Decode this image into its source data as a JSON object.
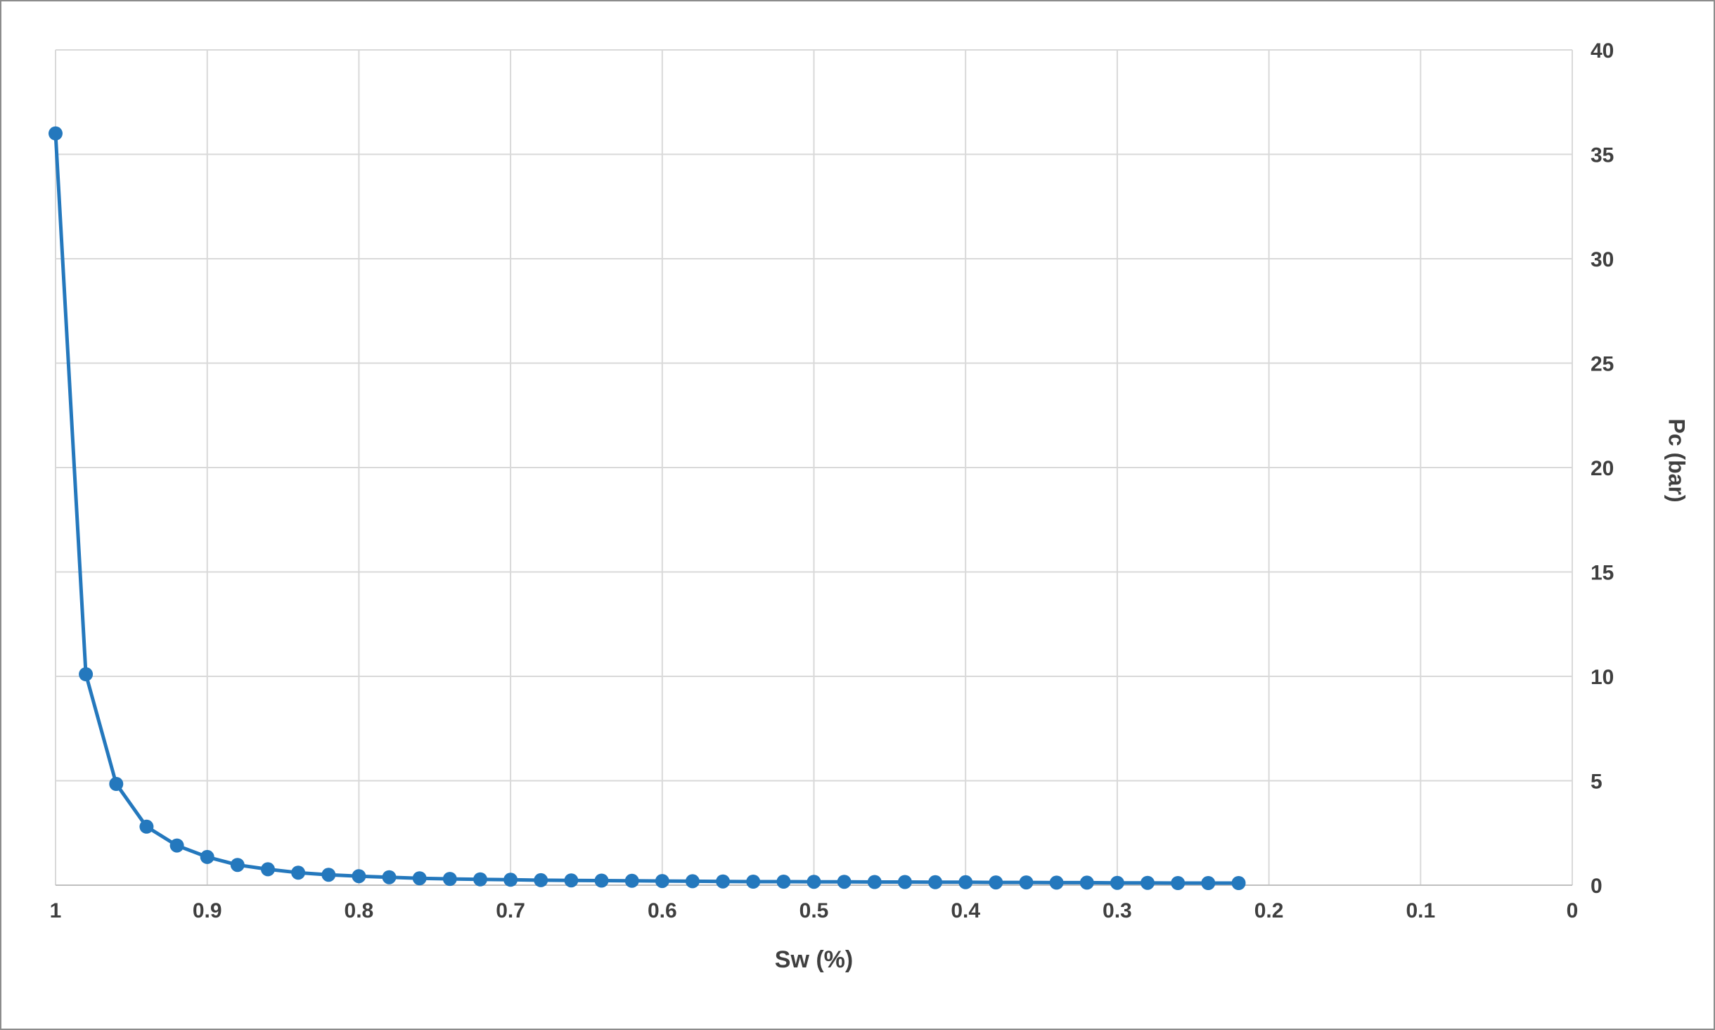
{
  "chart_data": {
    "type": "line",
    "title": "",
    "xlabel": "Sw (%)",
    "ylabel": "Pc (bar)",
    "xlim": [
      1,
      0
    ],
    "ylim": [
      0,
      40
    ],
    "x_axis_reversed": true,
    "grid": true,
    "legend": "none",
    "x_ticks": [
      {
        "value": 1,
        "label": "1"
      },
      {
        "value": 0.9,
        "label": "0.9"
      },
      {
        "value": 0.8,
        "label": "0.8"
      },
      {
        "value": 0.7,
        "label": "0.7"
      },
      {
        "value": 0.6,
        "label": "0.6"
      },
      {
        "value": 0.5,
        "label": "0.5"
      },
      {
        "value": 0.4,
        "label": "0.4"
      },
      {
        "value": 0.3,
        "label": "0.3"
      },
      {
        "value": 0.2,
        "label": "0.2"
      },
      {
        "value": 0.1,
        "label": "0.1"
      },
      {
        "value": 0,
        "label": "0"
      }
    ],
    "y_ticks": [
      {
        "value": 0,
        "label": "0"
      },
      {
        "value": 5,
        "label": "5"
      },
      {
        "value": 10,
        "label": "10"
      },
      {
        "value": 15,
        "label": "15"
      },
      {
        "value": 20,
        "label": "20"
      },
      {
        "value": 25,
        "label": "25"
      },
      {
        "value": 30,
        "label": "30"
      },
      {
        "value": 35,
        "label": "35"
      },
      {
        "value": 40,
        "label": "40"
      }
    ],
    "series": [
      {
        "name": "Pc (bar)",
        "color": "#2478BD",
        "marker": "circle",
        "x": [
          1.0,
          0.98,
          0.96,
          0.94,
          0.92,
          0.9,
          0.88,
          0.86,
          0.84,
          0.82,
          0.8,
          0.78,
          0.76,
          0.74,
          0.72,
          0.7,
          0.68,
          0.66,
          0.64,
          0.62,
          0.6,
          0.58,
          0.56,
          0.54,
          0.52,
          0.5,
          0.48,
          0.46,
          0.44,
          0.42,
          0.4,
          0.38,
          0.36,
          0.34,
          0.32,
          0.3,
          0.28,
          0.26,
          0.24,
          0.22
        ],
        "y": [
          36.0,
          10.1,
          4.85,
          2.8,
          1.9,
          1.35,
          0.97,
          0.76,
          0.6,
          0.5,
          0.43,
          0.38,
          0.33,
          0.3,
          0.28,
          0.26,
          0.24,
          0.23,
          0.22,
          0.21,
          0.2,
          0.19,
          0.18,
          0.17,
          0.17,
          0.16,
          0.16,
          0.15,
          0.15,
          0.14,
          0.14,
          0.13,
          0.13,
          0.12,
          0.12,
          0.11,
          0.11,
          0.1,
          0.1,
          0.1
        ]
      }
    ]
  },
  "colors": {
    "grid": "#D9D9D9",
    "axis": "#BFBFBF",
    "text": "#3F3F3F",
    "line": "#2478BD",
    "frame_border": "#8C8C8C",
    "background": "#FFFFFF"
  }
}
